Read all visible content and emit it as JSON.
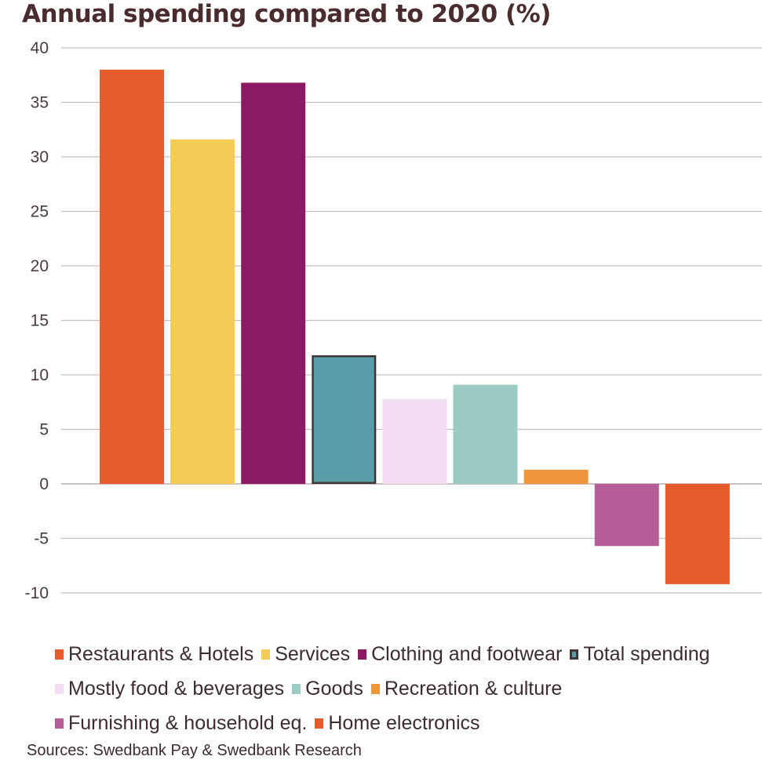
{
  "chart_data": {
    "type": "bar",
    "title": "Annual spending compared to 2020 (%)",
    "xlabel": "",
    "ylabel": "",
    "ylim": [
      -10,
      40
    ],
    "yticks": [
      40,
      35,
      30,
      25,
      20,
      15,
      10,
      5,
      0,
      -5,
      -10
    ],
    "grid": true,
    "legend_position": "bottom",
    "categories": [
      "Restaurants & Hotels",
      "Services",
      "Clothing and footwear",
      "Total spending",
      "Mostly food & beverages",
      "Goods",
      "Recreation & culture",
      "Furnishing & household eq.",
      "Home electronics"
    ],
    "values": [
      38.0,
      31.6,
      36.8,
      11.8,
      7.8,
      9.1,
      1.3,
      -5.7,
      -9.2
    ],
    "colors": [
      "#e45c2b",
      "#f4cb55",
      "#8b1a63",
      "#579ea8",
      "#f2dcf2",
      "#9ccbc3",
      "#ef963b",
      "#b55d96",
      "#e45c2b"
    ],
    "outlined": [
      false,
      false,
      false,
      true,
      false,
      false,
      false,
      false,
      false
    ],
    "legend_rows": [
      [
        0,
        1,
        2,
        3
      ],
      [
        4,
        5,
        6
      ],
      [
        7,
        8
      ]
    ]
  },
  "source": "Sources: Swedbank Pay & Swedbank Research"
}
